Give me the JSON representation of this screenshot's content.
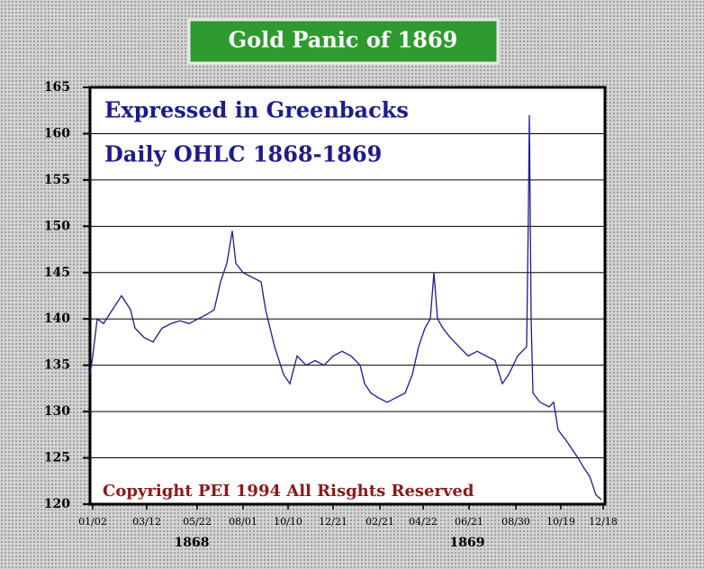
{
  "chart_data": {
    "type": "line",
    "title": "Gold Panic of 1869",
    "annotations": [
      "Expressed in Greenbacks",
      "Daily OHLC 1868-1869",
      "Copyright PEI 1994 All Risghts Reserved"
    ],
    "year_labels": [
      "1868",
      "1869"
    ],
    "x": [
      0,
      3,
      8,
      15,
      25,
      35,
      45,
      50,
      60,
      70,
      80,
      90,
      100,
      110,
      120,
      130,
      138,
      145,
      152,
      158,
      162,
      170,
      180,
      190,
      195,
      205,
      215,
      222,
      230,
      240,
      250,
      260,
      270,
      280,
      290,
      300,
      305,
      312,
      320,
      330,
      340,
      350,
      358,
      365,
      372,
      378,
      382,
      386,
      392,
      400,
      410,
      420,
      430,
      440,
      450,
      458,
      465,
      475,
      480,
      485,
      487,
      488,
      490,
      492,
      500,
      510,
      515,
      520,
      528,
      535,
      542,
      548,
      555,
      562,
      568
    ],
    "values": [
      134,
      136,
      140,
      139.5,
      141,
      142.5,
      141,
      139,
      138,
      137.5,
      139,
      139.5,
      139.8,
      139.5,
      140,
      140.5,
      141,
      144,
      146,
      149.5,
      146,
      145,
      144.5,
      144,
      141,
      137,
      134,
      133,
      136,
      135,
      135.5,
      135,
      136,
      136.5,
      136,
      135,
      133,
      132,
      131.5,
      131,
      131.5,
      132,
      134,
      137,
      139,
      140,
      145,
      140,
      139,
      138,
      137,
      136,
      136.5,
      136,
      135.5,
      133,
      134,
      136,
      136.5,
      137,
      152,
      162,
      140,
      132,
      131,
      130.5,
      131,
      128,
      127,
      126,
      125,
      124,
      123,
      121,
      120.5
    ],
    "color": "#1c1c8e",
    "xlim": [
      0,
      572
    ],
    "xticks": [
      {
        "value": 3,
        "label": "01/02"
      },
      {
        "value": 63,
        "label": "03/12"
      },
      {
        "value": 119,
        "label": "05/22"
      },
      {
        "value": 170,
        "label": "08/01"
      },
      {
        "value": 220,
        "label": "10/10"
      },
      {
        "value": 270,
        "label": "12/21"
      },
      {
        "value": 322,
        "label": "02/21"
      },
      {
        "value": 370,
        "label": "04/22"
      },
      {
        "value": 421,
        "label": "06/21"
      },
      {
        "value": 473,
        "label": "08/30"
      },
      {
        "value": 523,
        "label": "10/19"
      },
      {
        "value": 570,
        "label": "12/18"
      }
    ],
    "ylim": [
      120,
      165
    ],
    "yticks": [
      120,
      125,
      130,
      135,
      140,
      145,
      150,
      155,
      160,
      165
    ],
    "grid": true
  }
}
